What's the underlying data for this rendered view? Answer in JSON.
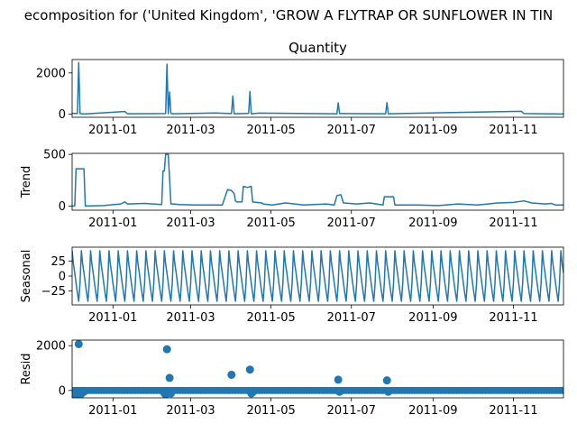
{
  "figure": {
    "suptitle": "ecomposition for ('United Kingdom', 'GROW A FLYTRAP OR SUNFLOWER IN TIN"
  },
  "chart_data": [
    {
      "type": "line",
      "title": "Quantity",
      "ylabel": "",
      "ylim": [
        -150,
        2650
      ],
      "yticks": [
        "0",
        "2000"
      ],
      "xticks": [
        "2011-01",
        "2011-03",
        "2011-05",
        "2011-07",
        "2011-09",
        "2011-11"
      ],
      "color": "#1f77b4",
      "series": [
        {
          "x": [
            "2010-12-01",
            "2010-12-05",
            "2010-12-06",
            "2010-12-07",
            "2010-12-10",
            "2011-01-10",
            "2011-01-12",
            "2011-02-10",
            "2011-02-11",
            "2011-02-12",
            "2011-02-13",
            "2011-02-14",
            "2011-02-16",
            "2011-03-20",
            "2011-04-01",
            "2011-04-02",
            "2011-04-03",
            "2011-04-14",
            "2011-04-15",
            "2011-04-16",
            "2011-04-22",
            "2011-06-20",
            "2011-06-21",
            "2011-06-22",
            "2011-07-27",
            "2011-07-28",
            "2011-07-29",
            "2011-11-07",
            "2011-11-09",
            "2011-12-09"
          ],
          "y": [
            40,
            30,
            2500,
            30,
            10,
            130,
            20,
            30,
            2420,
            20,
            1080,
            30,
            20,
            60,
            30,
            880,
            20,
            40,
            1100,
            20,
            50,
            20,
            550,
            30,
            20,
            560,
            20,
            140,
            30,
            10
          ]
        }
      ]
    },
    {
      "type": "line",
      "title": "",
      "ylabel": "Trend",
      "ylim": [
        -40,
        510
      ],
      "yticks": [
        "0",
        "500"
      ],
      "xticks": [
        "2011-01",
        "2011-03",
        "2011-05",
        "2011-07",
        "2011-09",
        "2011-11"
      ],
      "color": "#1f77b4",
      "series": [
        {
          "x": [
            "2010-12-01",
            "2010-12-03",
            "2010-12-04",
            "2010-12-10",
            "2010-12-11",
            "2010-12-25",
            "2011-01-07",
            "2011-01-10",
            "2011-01-12",
            "2011-01-25",
            "2011-02-07",
            "2011-02-08",
            "2011-02-09",
            "2011-02-10",
            "2011-02-12",
            "2011-02-14",
            "2011-02-16",
            "2011-02-20",
            "2011-03-05",
            "2011-03-25",
            "2011-03-29",
            "2011-04-01",
            "2011-04-03",
            "2011-04-04",
            "2011-04-05",
            "2011-04-09",
            "2011-04-10",
            "2011-04-13",
            "2011-04-16",
            "2011-04-17",
            "2011-04-24",
            "2011-04-25",
            "2011-05-02",
            "2011-05-12",
            "2011-05-26",
            "2011-06-12",
            "2011-06-18",
            "2011-06-20",
            "2011-06-23",
            "2011-06-25",
            "2011-07-05",
            "2011-07-15",
            "2011-07-25",
            "2011-07-26",
            "2011-08-02",
            "2011-08-03",
            "2011-08-20",
            "2011-09-05",
            "2011-09-20",
            "2011-10-05",
            "2011-10-20",
            "2011-11-01",
            "2011-11-09",
            "2011-11-15",
            "2011-11-25",
            "2011-11-30",
            "2011-12-03",
            "2011-12-09"
          ],
          "y": [
            0,
            0,
            360,
            360,
            0,
            5,
            20,
            40,
            20,
            25,
            15,
            340,
            340,
            500,
            500,
            20,
            20,
            15,
            10,
            10,
            160,
            150,
            120,
            50,
            40,
            40,
            190,
            180,
            190,
            40,
            30,
            20,
            10,
            30,
            10,
            20,
            10,
            100,
            110,
            30,
            20,
            30,
            10,
            90,
            90,
            10,
            10,
            5,
            20,
            10,
            30,
            35,
            50,
            30,
            20,
            25,
            10,
            10
          ]
        }
      ]
    },
    {
      "type": "line",
      "title": "",
      "ylabel": "Seasonal",
      "ylim": [
        -48,
        48
      ],
      "yticks": [
        "−25",
        "0",
        "25"
      ],
      "xticks": [
        "2011-01",
        "2011-03",
        "2011-05",
        "2011-07",
        "2011-09",
        "2011-11"
      ],
      "color": "#1f77b4",
      "seasonal": {
        "start": "2010-12-01",
        "end": "2011-12-09",
        "period_days": 7,
        "pattern": [
          42,
          20,
          5,
          -12,
          -28,
          -42,
          -12
        ]
      }
    },
    {
      "type": "scatter",
      "title": "",
      "ylabel": "Resid",
      "ylim": [
        -330,
        2250
      ],
      "yticks": [
        "0",
        "2000"
      ],
      "xticks": [
        "2011-01",
        "2011-03",
        "2011-05",
        "2011-07",
        "2011-09",
        "2011-11"
      ],
      "color": "#1f77b4",
      "series": [
        {
          "x": [
            "2010-12-01",
            "2010-12-03",
            "2010-12-05",
            "2010-12-06",
            "2010-12-07",
            "2010-12-08",
            "2010-12-10",
            "2011-02-09",
            "2011-02-10",
            "2011-02-11",
            "2011-02-13",
            "2011-02-14",
            "2011-04-01",
            "2011-04-15",
            "2011-04-16",
            "2011-04-17",
            "2011-06-21",
            "2011-06-22",
            "2011-07-28",
            "2011-07-29"
          ],
          "y": [
            -30,
            -170,
            -150,
            2070,
            -180,
            -150,
            -60,
            -120,
            -180,
            1840,
            560,
            -130,
            700,
            930,
            -130,
            -80,
            480,
            -60,
            450,
            -60
          ]
        }
      ]
    }
  ]
}
